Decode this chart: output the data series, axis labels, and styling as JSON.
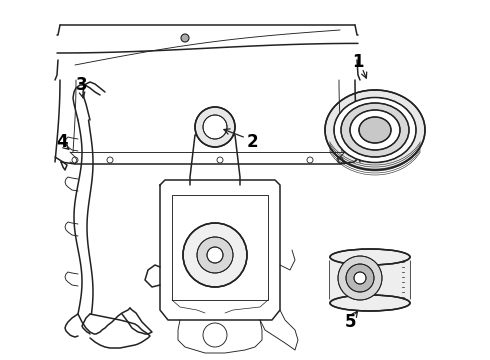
{
  "background_color": "#ffffff",
  "line_color": "#222222",
  "label_color": "#000000",
  "figsize": [
    4.9,
    3.6
  ],
  "dpi": 100,
  "lw_main": 1.1,
  "lw_thin": 0.65,
  "lw_label": 0.8
}
